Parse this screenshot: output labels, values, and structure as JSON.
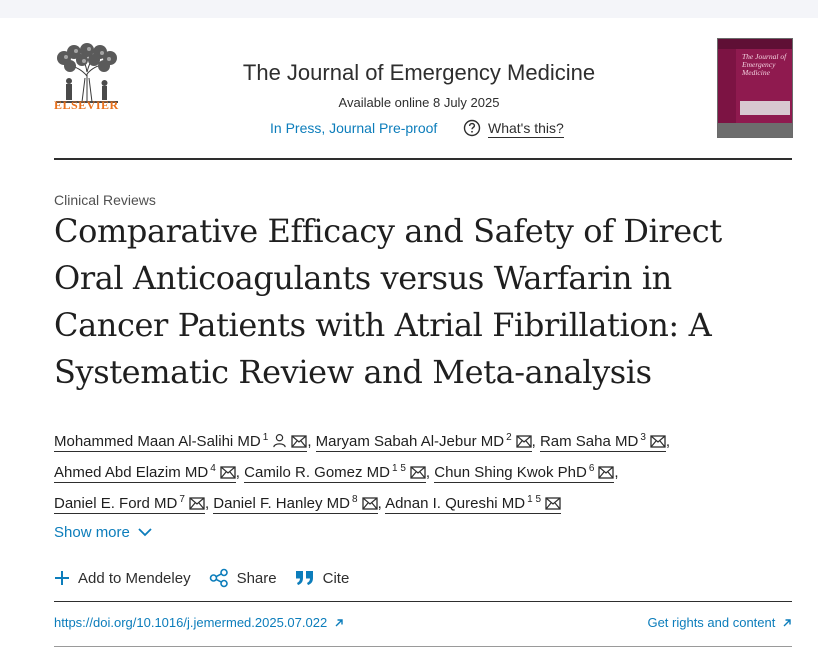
{
  "publisher": {
    "name": "ELSEVIER"
  },
  "journal": {
    "title": "The Journal of Emergency Medicine",
    "available": "Available online 8 July 2025",
    "status_link": "In Press, Journal Pre-proof",
    "help_link": "What's this?",
    "cover_title": "The Journal of Emergency Medicine"
  },
  "article": {
    "section": "Clinical Reviews",
    "title": "Comparative Efficacy and Safety of Direct Oral Anticoagulants versus Warfarin in Cancer Patients with Atrial Fibrillation: A Systematic Review and Meta-analysis",
    "authors": [
      {
        "name": "Mohammed Maan Al-Salihi MD",
        "sup": "1"
      },
      {
        "name": "Maryam Sabah Al-Jebur MD",
        "sup": "2"
      },
      {
        "name": "Ram Saha MD",
        "sup": "3"
      },
      {
        "name": "Ahmed Abd Elazim MD",
        "sup": "4"
      },
      {
        "name": "Camilo R. Gomez MD",
        "sup": "1 5"
      },
      {
        "name": "Chun Shing Kwok PhD",
        "sup": "6"
      },
      {
        "name": "Daniel E. Ford MD",
        "sup": "7"
      },
      {
        "name": "Daniel F. Hanley MD",
        "sup": "8"
      },
      {
        "name": "Adnan I. Qureshi MD",
        "sup": "1 5"
      }
    ],
    "show_more": "Show more"
  },
  "actions": {
    "mendeley": "Add to Mendeley",
    "share": "Share",
    "cite": "Cite"
  },
  "links": {
    "doi": "https://doi.org/10.1016/j.jemermed.2025.07.022",
    "rights": "Get rights and content"
  },
  "colors": {
    "link": "#0c7dbb",
    "brand": "#e9711c",
    "text": "#1f1f1f"
  },
  "icons": [
    "elsevier-tree-logo",
    "help-icon",
    "person-icon",
    "email-icon",
    "chevron-down-icon",
    "plus-icon",
    "share-icon",
    "quote-icon",
    "external-arrow-icon"
  ]
}
